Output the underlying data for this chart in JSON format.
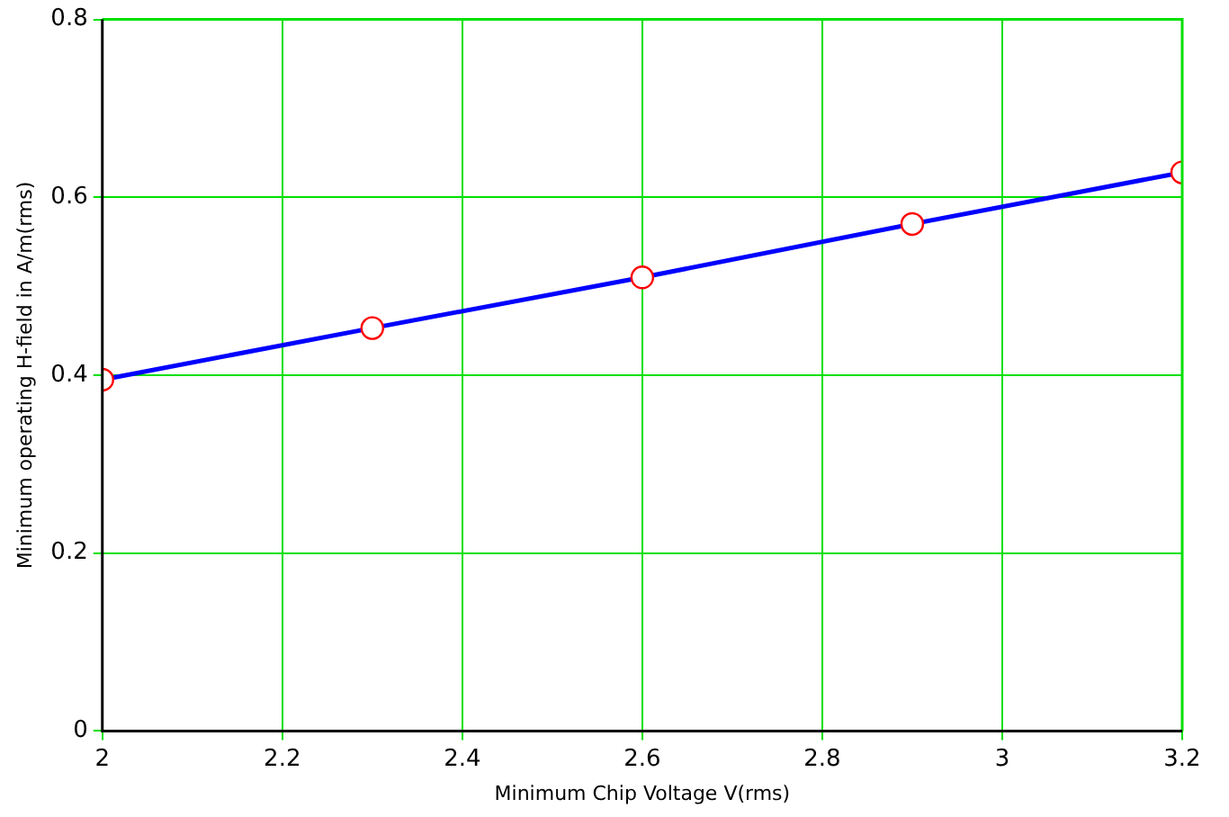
{
  "chart_data": {
    "type": "line",
    "xlabel": "Minimum Chip Voltage V(rms)",
    "ylabel": "Minimum operating H-field in A/m(rms)",
    "x": [
      2,
      2.3,
      2.6,
      2.9,
      3.2
    ],
    "series": [
      {
        "color": "#0000ff",
        "values": [
          0.395,
          0.453,
          0.51,
          0.57,
          0.628
        ]
      }
    ],
    "xlim": [
      2,
      3.2
    ],
    "xticks": [
      2,
      2.2,
      2.4,
      2.6,
      2.8,
      3,
      3.2
    ],
    "ylim": [
      0,
      0.8
    ],
    "yticks": [
      0,
      0.2,
      0.4,
      0.6,
      0.8
    ],
    "grid": true,
    "legend": false,
    "marker": "circle",
    "line_style": "solid"
  }
}
